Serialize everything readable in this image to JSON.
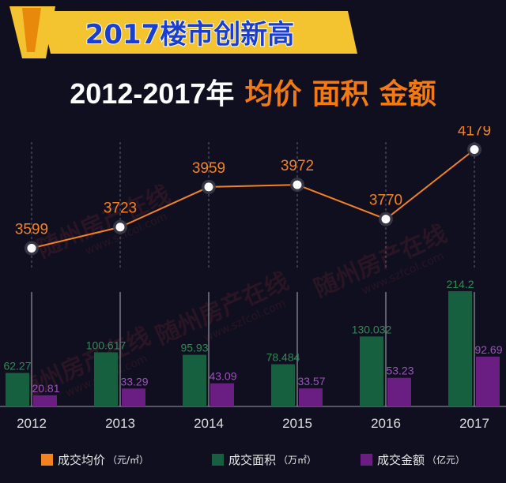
{
  "banner": {
    "title": "2017楼市创新高",
    "accent_color": "#f4c430",
    "text_color": "#1a3fcf"
  },
  "headline": {
    "years": "2012-2017年",
    "metrics": [
      "均价",
      "面积",
      "金额"
    ]
  },
  "watermark": {
    "text": "随州房产在线",
    "url": "www.szfcol.com"
  },
  "chart_data": {
    "type": "bar+line",
    "categories": [
      "2012",
      "2013",
      "2014",
      "2015",
      "2016",
      "2017"
    ],
    "series": [
      {
        "name": "成交均价",
        "unit": "（元/㎡）",
        "type": "line",
        "color": "#f48220",
        "values": [
          3599,
          3723,
          3959,
          3972,
          3770,
          4179
        ],
        "labels": [
          "3599",
          "3723",
          "3959",
          "3972",
          "3770",
          "4179"
        ]
      },
      {
        "name": "成交面积",
        "unit": "（万㎡）",
        "type": "bar",
        "color": "#16603f",
        "values": [
          62.27,
          100.617,
          95.93,
          78.484,
          130.032,
          214.2
        ],
        "labels": [
          "62.27",
          "100.617",
          "95.93",
          "78.484",
          "130.032",
          "214.2"
        ]
      },
      {
        "name": "成交金额",
        "unit": "（亿元）",
        "type": "bar",
        "color": "#6a1e82",
        "values": [
          20.81,
          33.29,
          43.09,
          33.57,
          53.23,
          92.69
        ],
        "labels": [
          "20.81",
          "33.29",
          "43.09",
          "33.57",
          "53.23",
          "92.69"
        ]
      }
    ],
    "bar_ylim": [
      0,
      250
    ],
    "line_ylim": [
      3000,
      4400
    ],
    "grid": false,
    "legend": "bottom"
  }
}
